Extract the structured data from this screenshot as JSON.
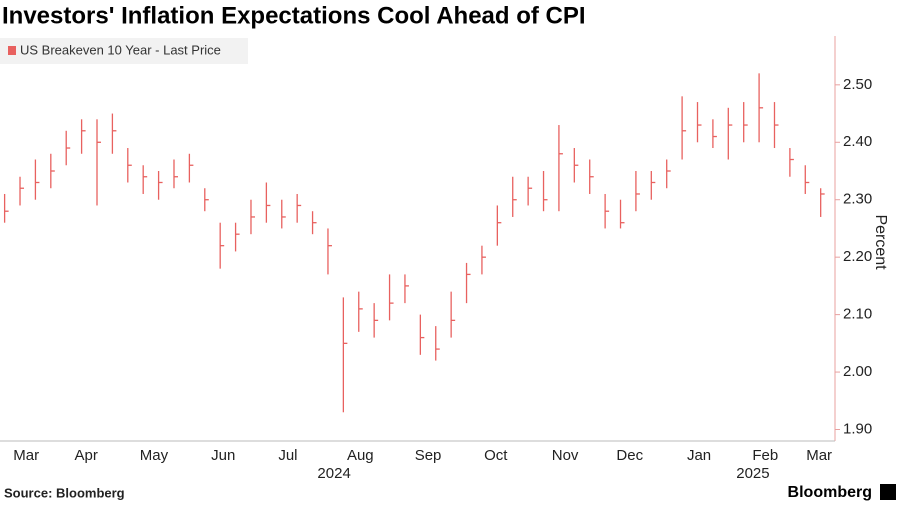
{
  "chart_data": {
    "type": "ohlc",
    "title": "Investors' Inflation Expectations Cool Ahead of CPI",
    "y_label": "Percent",
    "source": "Source: Bloomberg",
    "brand": "Bloomberg",
    "color": "#e8615f",
    "series": [
      {
        "name": "US Breakeven 10 Year - Last Price",
        "color": "#e8615f",
        "values": [
          2.28,
          2.32,
          2.33,
          2.35,
          2.39,
          2.42,
          2.4,
          2.42,
          2.36,
          2.34,
          2.33,
          2.34,
          2.36,
          2.3,
          2.22,
          2.24,
          2.27,
          2.29,
          2.27,
          2.29,
          2.26,
          2.22,
          2.05,
          2.11,
          2.09,
          2.12,
          2.15,
          2.06,
          2.04,
          2.09,
          2.17,
          2.2,
          2.26,
          2.3,
          2.32,
          2.3,
          2.38,
          2.36,
          2.34,
          2.28,
          2.26,
          2.31,
          2.33,
          2.35,
          2.42,
          2.43,
          2.41,
          2.43,
          2.43,
          2.46,
          2.43,
          2.37,
          2.33,
          2.31
        ],
        "high": [
          2.31,
          2.34,
          2.37,
          2.38,
          2.42,
          2.44,
          2.44,
          2.45,
          2.39,
          2.36,
          2.35,
          2.37,
          2.38,
          2.32,
          2.26,
          2.26,
          2.3,
          2.33,
          2.3,
          2.31,
          2.28,
          2.25,
          2.13,
          2.14,
          2.12,
          2.17,
          2.17,
          2.1,
          2.08,
          2.14,
          2.19,
          2.22,
          2.29,
          2.34,
          2.34,
          2.35,
          2.43,
          2.39,
          2.37,
          2.31,
          2.3,
          2.35,
          2.35,
          2.37,
          2.48,
          2.47,
          2.44,
          2.46,
          2.47,
          2.52,
          2.47,
          2.39,
          2.36,
          2.32
        ],
        "low": [
          2.26,
          2.29,
          2.3,
          2.32,
          2.36,
          2.38,
          2.29,
          2.38,
          2.33,
          2.31,
          2.3,
          2.32,
          2.33,
          2.28,
          2.18,
          2.21,
          2.24,
          2.26,
          2.25,
          2.26,
          2.24,
          2.17,
          1.93,
          2.07,
          2.06,
          2.09,
          2.12,
          2.03,
          2.02,
          2.06,
          2.12,
          2.17,
          2.22,
          2.27,
          2.29,
          2.28,
          2.28,
          2.33,
          2.31,
          2.25,
          2.25,
          2.28,
          2.3,
          2.32,
          2.37,
          2.4,
          2.39,
          2.37,
          2.4,
          2.4,
          2.39,
          2.34,
          2.31,
          2.27
        ]
      }
    ],
    "xlim": [
      -0.3,
      53.8
    ],
    "xticks": [
      {
        "value": 1.4,
        "label": "Mar"
      },
      {
        "value": 5.3,
        "label": "Apr"
      },
      {
        "value": 9.7,
        "label": "May"
      },
      {
        "value": 14.2,
        "label": "Jun"
      },
      {
        "value": 18.4,
        "label": "Jul"
      },
      {
        "value": 23.1,
        "label": "Aug"
      },
      {
        "value": 27.5,
        "label": "Sep"
      },
      {
        "value": 31.9,
        "label": "Oct"
      },
      {
        "value": 36.4,
        "label": "Nov"
      },
      {
        "value": 40.6,
        "label": "Dec"
      },
      {
        "value": 45.1,
        "label": "Jan"
      },
      {
        "value": 49.4,
        "label": "Feb"
      },
      {
        "value": 52.9,
        "label": "Mar"
      }
    ],
    "year_ticks": [
      {
        "value": 21.4,
        "label": "2024"
      },
      {
        "value": 48.6,
        "label": "2025"
      }
    ],
    "ylim": [
      1.88,
      2.585
    ],
    "yticks": [
      {
        "value": 1.9,
        "label": "1.90"
      },
      {
        "value": 2.0,
        "label": "2.00"
      },
      {
        "value": 2.1,
        "label": "2.10"
      },
      {
        "value": 2.2,
        "label": "2.20"
      },
      {
        "value": 2.3,
        "label": "2.30"
      },
      {
        "value": 2.4,
        "label": "2.40"
      },
      {
        "value": 2.5,
        "label": "2.50"
      }
    ],
    "grid": false
  }
}
